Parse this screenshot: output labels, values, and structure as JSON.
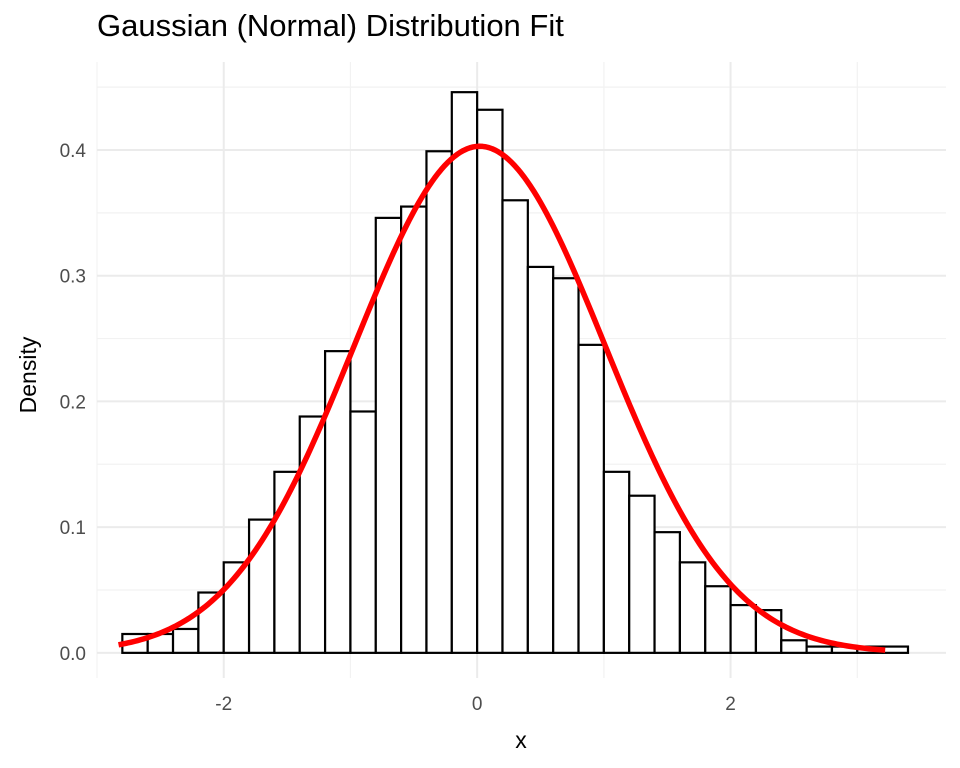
{
  "chart_data": {
    "type": "histogram",
    "title": "Gaussian (Normal) Distribution Fit",
    "xlabel": "x",
    "ylabel": "Density",
    "xlim": [
      -3.0,
      3.7
    ],
    "ylim": [
      -0.02,
      0.47
    ],
    "x_ticks": [
      -2,
      0,
      2
    ],
    "x_tick_labels": [
      "-2",
      "0",
      "2"
    ],
    "y_ticks": [
      0.0,
      0.1,
      0.2,
      0.3,
      0.4
    ],
    "y_tick_labels": [
      "0.0",
      "0.1",
      "0.2",
      "0.3",
      "0.4"
    ],
    "grid": true,
    "legend": "none",
    "bin_width": 0.2,
    "bin_starts": [
      -2.8,
      -2.6,
      -2.4,
      -2.2,
      -2.0,
      -1.8,
      -1.6,
      -1.4,
      -1.2,
      -1.0,
      -0.8,
      -0.6,
      -0.4,
      -0.2,
      0.0,
      0.2,
      0.4,
      0.6,
      0.8,
      1.0,
      1.2,
      1.4,
      1.6,
      1.8,
      2.0,
      2.2,
      2.4,
      2.6,
      2.8,
      3.0,
      3.2
    ],
    "density": [
      0.015,
      0.015,
      0.019,
      0.048,
      0.072,
      0.106,
      0.144,
      0.188,
      0.24,
      0.192,
      0.346,
      0.355,
      0.399,
      0.446,
      0.432,
      0.36,
      0.307,
      0.298,
      0.245,
      0.144,
      0.125,
      0.096,
      0.072,
      0.053,
      0.038,
      0.034,
      0.01,
      0.005,
      0.005,
      0.005,
      0.005
    ],
    "curve": {
      "type": "line",
      "color": "#ff0000",
      "distribution": "normal",
      "mean": 0.02,
      "sd": 0.99,
      "x_range": [
        -2.83,
        3.22
      ]
    },
    "bar_fill": "#ffffff",
    "bar_stroke": "#000000"
  }
}
